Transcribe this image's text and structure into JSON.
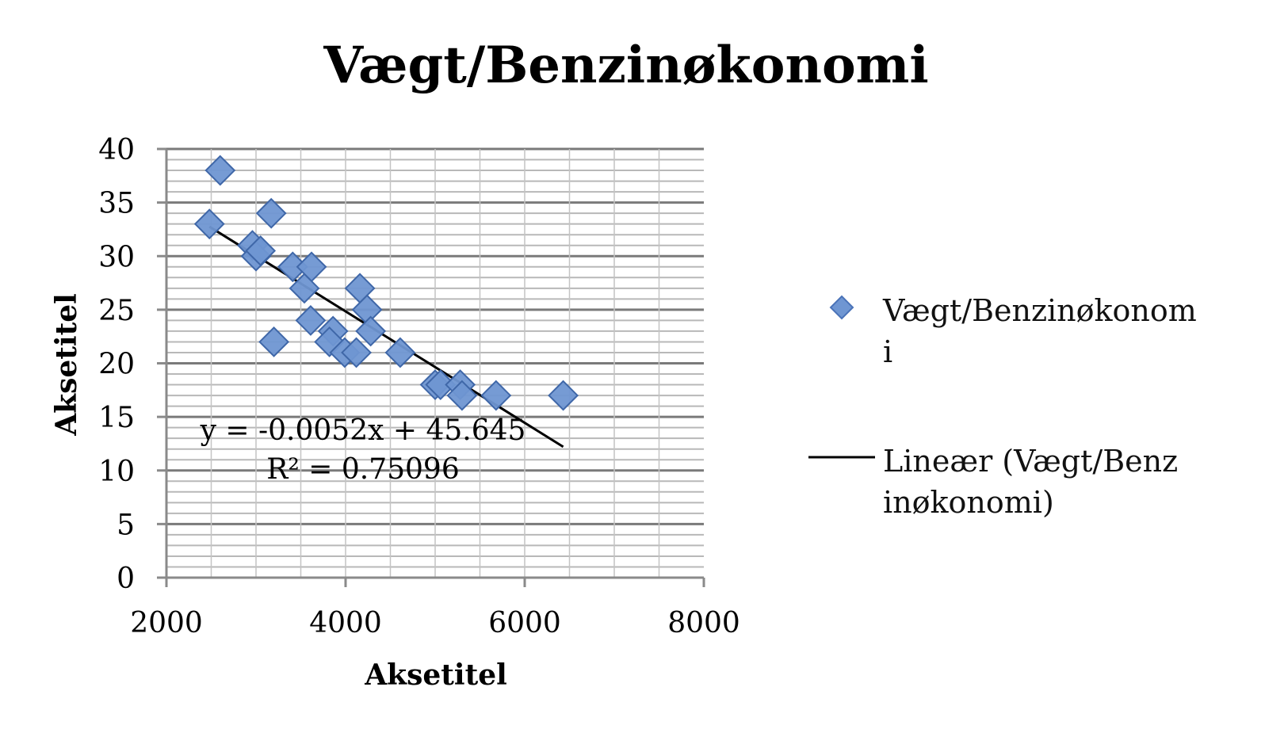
{
  "chart_data": {
    "type": "scatter",
    "title": "Vægt/Benzinøkonomi",
    "xlabel": "Aksetitel",
    "ylabel": "Aksetitel",
    "xlim": [
      2000,
      8000
    ],
    "ylim": [
      0,
      40
    ],
    "x_ticks": [
      "2000",
      "4000",
      "6000",
      "8000"
    ],
    "y_ticks": [
      "0",
      "5",
      "10",
      "15",
      "20",
      "25",
      "30",
      "35",
      "40"
    ],
    "grid": true,
    "legend_position": "right",
    "series": [
      {
        "name": "Vægt/Benzinøkonomi",
        "marker": "diamond",
        "color": "#6f96d2",
        "points": [
          {
            "x": 2600,
            "y": 38
          },
          {
            "x": 2480,
            "y": 33
          },
          {
            "x": 3170,
            "y": 34
          },
          {
            "x": 2960,
            "y": 31
          },
          {
            "x": 3000,
            "y": 30
          },
          {
            "x": 3050,
            "y": 30.5
          },
          {
            "x": 3410,
            "y": 29
          },
          {
            "x": 3620,
            "y": 29
          },
          {
            "x": 3540,
            "y": 27
          },
          {
            "x": 4160,
            "y": 27
          },
          {
            "x": 4240,
            "y": 25
          },
          {
            "x": 3610,
            "y": 24
          },
          {
            "x": 3860,
            "y": 23
          },
          {
            "x": 4280,
            "y": 23
          },
          {
            "x": 3200,
            "y": 22
          },
          {
            "x": 3820,
            "y": 22
          },
          {
            "x": 3990,
            "y": 21
          },
          {
            "x": 4120,
            "y": 21
          },
          {
            "x": 4610,
            "y": 21
          },
          {
            "x": 5000,
            "y": 18
          },
          {
            "x": 5060,
            "y": 18
          },
          {
            "x": 5280,
            "y": 18
          },
          {
            "x": 5300,
            "y": 17
          },
          {
            "x": 5680,
            "y": 17
          },
          {
            "x": 6430,
            "y": 17
          }
        ]
      }
    ],
    "trendline": {
      "name": "Lineær (Vægt/Benzinøkonomi)",
      "color": "#000000",
      "slope": -0.0052,
      "intercept": 45.645,
      "x_range": [
        2480,
        6430
      ],
      "equation_label": "y = -0.0052x + 45.645",
      "r2_label": "R² = 0.75096"
    }
  },
  "legend": {
    "series_label": "Vægt/Benzinøkonomi",
    "trend_label": "Lineær (Vægt/Benzinøkonomi)"
  }
}
